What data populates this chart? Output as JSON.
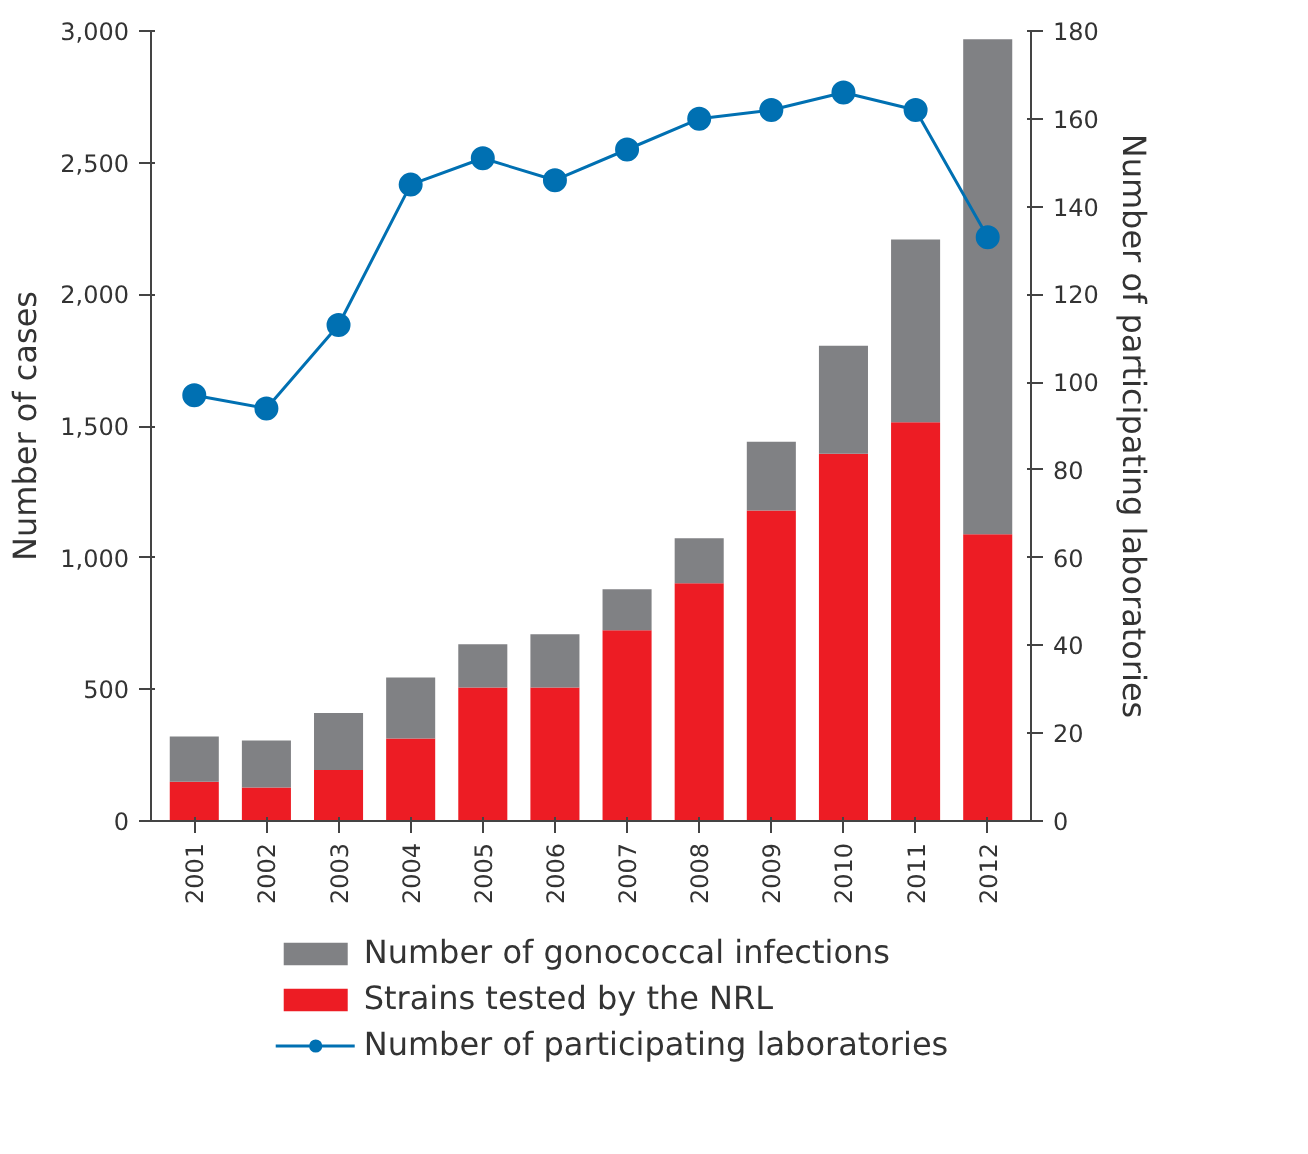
{
  "chart_data": {
    "type": "bar",
    "stacked": true,
    "categories": [
      "2001",
      "2002",
      "2003",
      "2004",
      "2005",
      "2006",
      "2007",
      "2008",
      "2009",
      "2010",
      "2011",
      "2012"
    ],
    "ylabel": "Number of cases",
    "y2label": "Number of participating laboratories",
    "ylim": [
      0,
      3000
    ],
    "yticks": [
      0,
      {
        "value": 500,
        "label": "500"
      },
      {
        "value": 1000,
        "label": "1,000"
      },
      {
        "value": 1500,
        "label": "1,500"
      },
      {
        "value": 2000,
        "label": "2,000"
      },
      {
        "value": 2500,
        "label": "2,500"
      },
      {
        "value": 3000,
        "label": "3,000"
      }
    ],
    "y2lim": [
      0,
      180
    ],
    "y2ticks": [
      0,
      20,
      40,
      60,
      80,
      100,
      120,
      140,
      160,
      180
    ],
    "grid": false,
    "legend": "bottom",
    "marker": "circle",
    "series": [
      {
        "name": "Strains tested by the NRL",
        "color": "#ed1c24",
        "values": [
          149,
          127,
          194,
          313,
          507,
          507,
          724,
          903,
          1179,
          1395,
          1514,
          1089
        ]
      },
      {
        "name": "Number of gonococcal infections",
        "color": "#808184",
        "values": [
          172,
          179,
          216,
          232,
          164,
          202,
          156,
          171,
          261,
          410,
          694,
          1880
        ]
      },
      {
        "name": "Number of participating laboratories",
        "type": "line",
        "axis": "y2",
        "color": "#0070b2",
        "values": [
          97,
          94,
          113,
          145,
          151,
          146,
          153,
          160,
          162,
          166,
          162,
          133
        ]
      }
    ]
  }
}
